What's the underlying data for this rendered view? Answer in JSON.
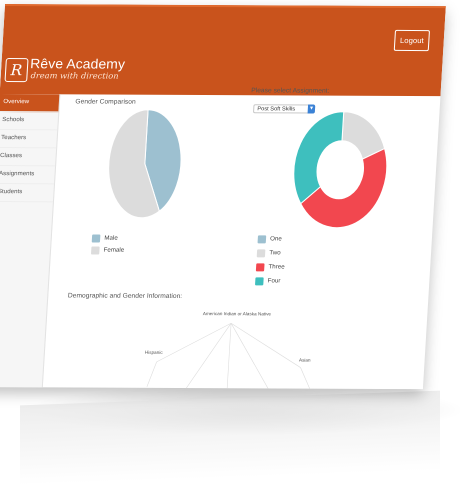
{
  "header": {
    "brand_title": "Rêve Academy",
    "brand_tagline": "dream with direction",
    "logo_letter": "R",
    "logout_label": "Logout",
    "brand_color": "#c9531c"
  },
  "sidebar": {
    "items": [
      {
        "label": "Overview",
        "active": true
      },
      {
        "label": "Schools",
        "active": false
      },
      {
        "label": "Teachers",
        "active": false
      },
      {
        "label": "Classes",
        "active": false
      },
      {
        "label": "Assignments",
        "active": false
      },
      {
        "label": "Students",
        "active": false
      }
    ]
  },
  "main": {
    "gender_title": "Gender Comparison",
    "assignment_prompt": "Please select Assignment:",
    "assignment_selected": "Post Soft Skills",
    "demographic_title": "Demographic and Gender Information:",
    "radar_labels": [
      "American Indian or Alaska Native",
      "Hispanic",
      "Asian"
    ]
  },
  "chart_data": [
    {
      "type": "pie",
      "title": "Gender Comparison",
      "categories": [
        "Male",
        "Female"
      ],
      "values": [
        42,
        58
      ],
      "colors": [
        "#9dc0d0",
        "#dcdcdc"
      ],
      "legend_position": "bottom-left"
    },
    {
      "type": "pie",
      "donut": true,
      "categories": [
        "One",
        "Two",
        "Three",
        "Four"
      ],
      "values": [
        0,
        19,
        46,
        35
      ],
      "colors": [
        "#9dc0d0",
        "#dcdcdc",
        "#f2474f",
        "#3ebfbe"
      ],
      "legend_position": "bottom-left"
    }
  ]
}
